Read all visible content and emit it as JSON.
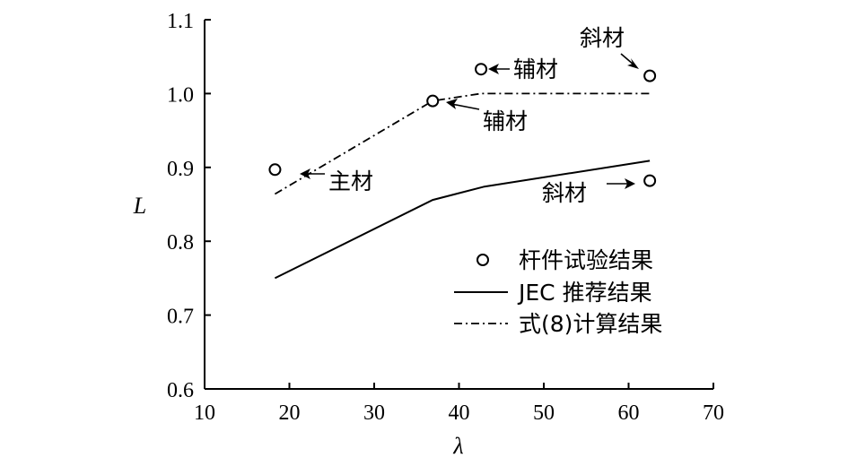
{
  "chart_data": {
    "type": "line",
    "xlabel": "λ",
    "ylabel": "L",
    "xlim": [
      10,
      70
    ],
    "ylim": [
      0.6,
      1.1
    ],
    "xticks": [
      10,
      20,
      30,
      40,
      50,
      60,
      70
    ],
    "yticks": [
      0.6,
      0.7,
      0.8,
      0.9,
      1.0,
      1.1
    ],
    "ytick_labels": [
      "0.6",
      "0.7",
      "0.8",
      "0.9",
      "1.0",
      "1.1"
    ],
    "grid": false,
    "legend_position": "right",
    "series": [
      {
        "name": "杆件试验结果",
        "style": "markers",
        "points": [
          [
            18.3,
            0.897
          ],
          [
            36.9,
            0.99
          ],
          [
            42.6,
            1.033
          ],
          [
            62.5,
            1.024
          ],
          [
            62.5,
            0.882
          ]
        ]
      },
      {
        "name": "JEC 推荐结果",
        "style": "solid",
        "points": [
          [
            18.3,
            0.75
          ],
          [
            36.9,
            0.856
          ],
          [
            43.0,
            0.874
          ],
          [
            62.5,
            0.909
          ]
        ]
      },
      {
        "name": "式(8)计算结果",
        "style": "dashdot",
        "points": [
          [
            18.3,
            0.864
          ],
          [
            36.9,
            0.99
          ],
          [
            42.6,
            1.0
          ],
          [
            62.5,
            1.0
          ]
        ]
      }
    ],
    "annotations": [
      {
        "text": "主材",
        "x": 18.3,
        "y": 0.897
      },
      {
        "text": "辅材",
        "x": 36.9,
        "y": 0.99
      },
      {
        "text": "辅材",
        "x": 42.6,
        "y": 1.033
      },
      {
        "text": "斜材",
        "x": 62.5,
        "y": 1.024
      },
      {
        "text": "斜材",
        "x": 62.5,
        "y": 0.882
      }
    ]
  }
}
